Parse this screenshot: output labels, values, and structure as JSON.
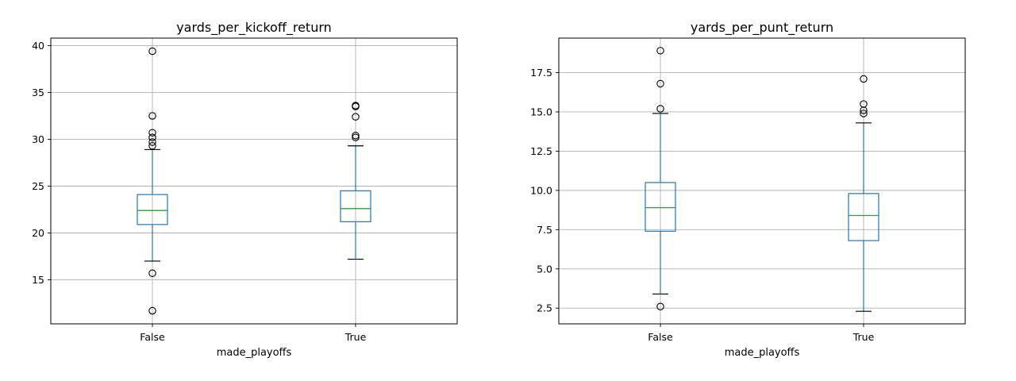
{
  "chart_data": [
    {
      "type": "box",
      "title": "yards_per_kickoff_return",
      "xlabel": "made_playoffs",
      "ylabel": "",
      "categories": [
        "False",
        "True"
      ],
      "ylim": [
        10.3,
        40.8
      ],
      "yticks": [
        15,
        20,
        25,
        30,
        35,
        40
      ],
      "ytick_labels": [
        "15",
        "20",
        "25",
        "30",
        "35",
        "40"
      ],
      "grid": true,
      "boxes": [
        {
          "category": "False",
          "whisker_low": 17.0,
          "q1": 20.9,
          "median": 22.4,
          "q3": 24.1,
          "whisker_high": 28.9,
          "outliers": [
            39.4,
            32.5,
            30.7,
            30.2,
            29.7,
            29.3,
            15.7,
            11.7
          ]
        },
        {
          "category": "True",
          "whisker_low": 17.2,
          "q1": 21.2,
          "median": 22.6,
          "q3": 24.5,
          "whisker_high": 29.3,
          "outliers": [
            33.6,
            33.5,
            32.4,
            30.4,
            30.2
          ]
        }
      ]
    },
    {
      "type": "box",
      "title": "yards_per_punt_return",
      "xlabel": "made_playoffs",
      "ylabel": "",
      "categories": [
        "False",
        "True"
      ],
      "ylim": [
        1.5,
        19.7
      ],
      "yticks": [
        2.5,
        5.0,
        7.5,
        10.0,
        12.5,
        15.0,
        17.5
      ],
      "ytick_labels": [
        "2.5",
        "5.0",
        "7.5",
        "10.0",
        "12.5",
        "15.0",
        "17.5"
      ],
      "grid": true,
      "boxes": [
        {
          "category": "False",
          "whisker_low": 3.4,
          "q1": 7.4,
          "median": 8.9,
          "q3": 10.5,
          "whisker_high": 14.9,
          "outliers": [
            18.9,
            16.8,
            15.2,
            2.6
          ]
        },
        {
          "category": "True",
          "whisker_low": 2.3,
          "q1": 6.8,
          "median": 8.4,
          "q3": 9.8,
          "whisker_high": 14.3,
          "outliers": [
            17.1,
            15.5,
            15.1,
            14.9
          ]
        }
      ]
    }
  ],
  "colors": {
    "box": "#1f77b4",
    "median": "#2ca02c",
    "cap": "#000000",
    "grid": "#b0b0b0",
    "axes": "#000000"
  }
}
